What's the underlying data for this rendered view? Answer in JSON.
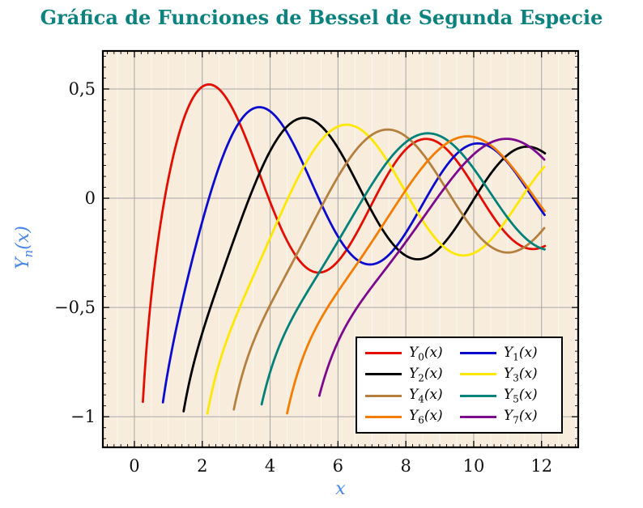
{
  "title": {
    "text": "Gráfica de Funciones de Bessel de Segunda Especie",
    "color": "#0c827e"
  },
  "chart_data": {
    "type": "line",
    "title": "Gráfica de Funciones de Bessel de Segunda Especie",
    "xlabel": "x",
    "ylabel": {
      "base": "Y",
      "sub": "n",
      "args": "(x)"
    },
    "xlim": [
      -0.93,
      13.08
    ],
    "ylim": [
      -1.14,
      0.674
    ],
    "x_ticks": {
      "major": [
        0,
        2,
        4,
        6,
        8,
        10,
        12
      ],
      "labels": [
        "0",
        "2",
        "4",
        "6",
        "8",
        "10",
        "12"
      ],
      "minor_step": 0.2
    },
    "y_ticks": {
      "major": [
        0.5,
        0,
        -0.5,
        -1
      ],
      "labels": [
        "0,5",
        "0",
        "−0,5",
        "−1"
      ],
      "minor_step": 0.05
    },
    "grid": {
      "major": true,
      "major_color": "#a6a6a6",
      "minor_x_step": 0.5,
      "minor_color": "rgba(255,255,255,0.6)"
    },
    "plot_background": "#f8ecdc",
    "border_color": "#000000",
    "tick_color": "#000000",
    "tick_label_color": "#111111",
    "axis_label_color": "#4a86e8",
    "legend": {
      "position": "bottom-right",
      "background": "#ffffff",
      "border_color": "#000000"
    },
    "series": [
      {
        "function": "BesselY",
        "order": 0,
        "label_base": "Y",
        "label_sub": "0",
        "label_args": "(x)",
        "domain": [
          0.25,
          12.1
        ],
        "color": "#e30d00"
      },
      {
        "function": "BesselY",
        "order": 1,
        "label_base": "Y",
        "label_sub": "1",
        "label_args": "(x)",
        "domain": [
          0.84,
          12.1
        ],
        "color": "#0b0bd0"
      },
      {
        "function": "BesselY",
        "order": 2,
        "label_base": "Y",
        "label_sub": "2",
        "label_args": "(x)",
        "domain": [
          1.45,
          12.1
        ],
        "color": "#000000"
      },
      {
        "function": "BesselY",
        "order": 3,
        "label_base": "Y",
        "label_sub": "3",
        "label_args": "(x)",
        "domain": [
          2.15,
          12.1
        ],
        "color": "#ffe800"
      },
      {
        "function": "BesselY",
        "order": 4,
        "label_base": "Y",
        "label_sub": "4",
        "label_args": "(x)",
        "domain": [
          2.93,
          12.1
        ],
        "color": "#b5803f"
      },
      {
        "function": "BesselY",
        "order": 5,
        "label_base": "Y",
        "label_sub": "5",
        "label_args": "(x)",
        "domain": [
          3.75,
          12.1
        ],
        "color": "#00817a"
      },
      {
        "function": "BesselY",
        "order": 6,
        "label_base": "Y",
        "label_sub": "6",
        "label_args": "(x)",
        "domain": [
          4.5,
          12.1
        ],
        "color": "#f47d00"
      },
      {
        "function": "BesselY",
        "order": 7,
        "label_base": "Y",
        "label_sub": "7",
        "label_args": "(x)",
        "domain": [
          5.45,
          12.1
        ],
        "color": "#7d0a8c"
      }
    ]
  }
}
